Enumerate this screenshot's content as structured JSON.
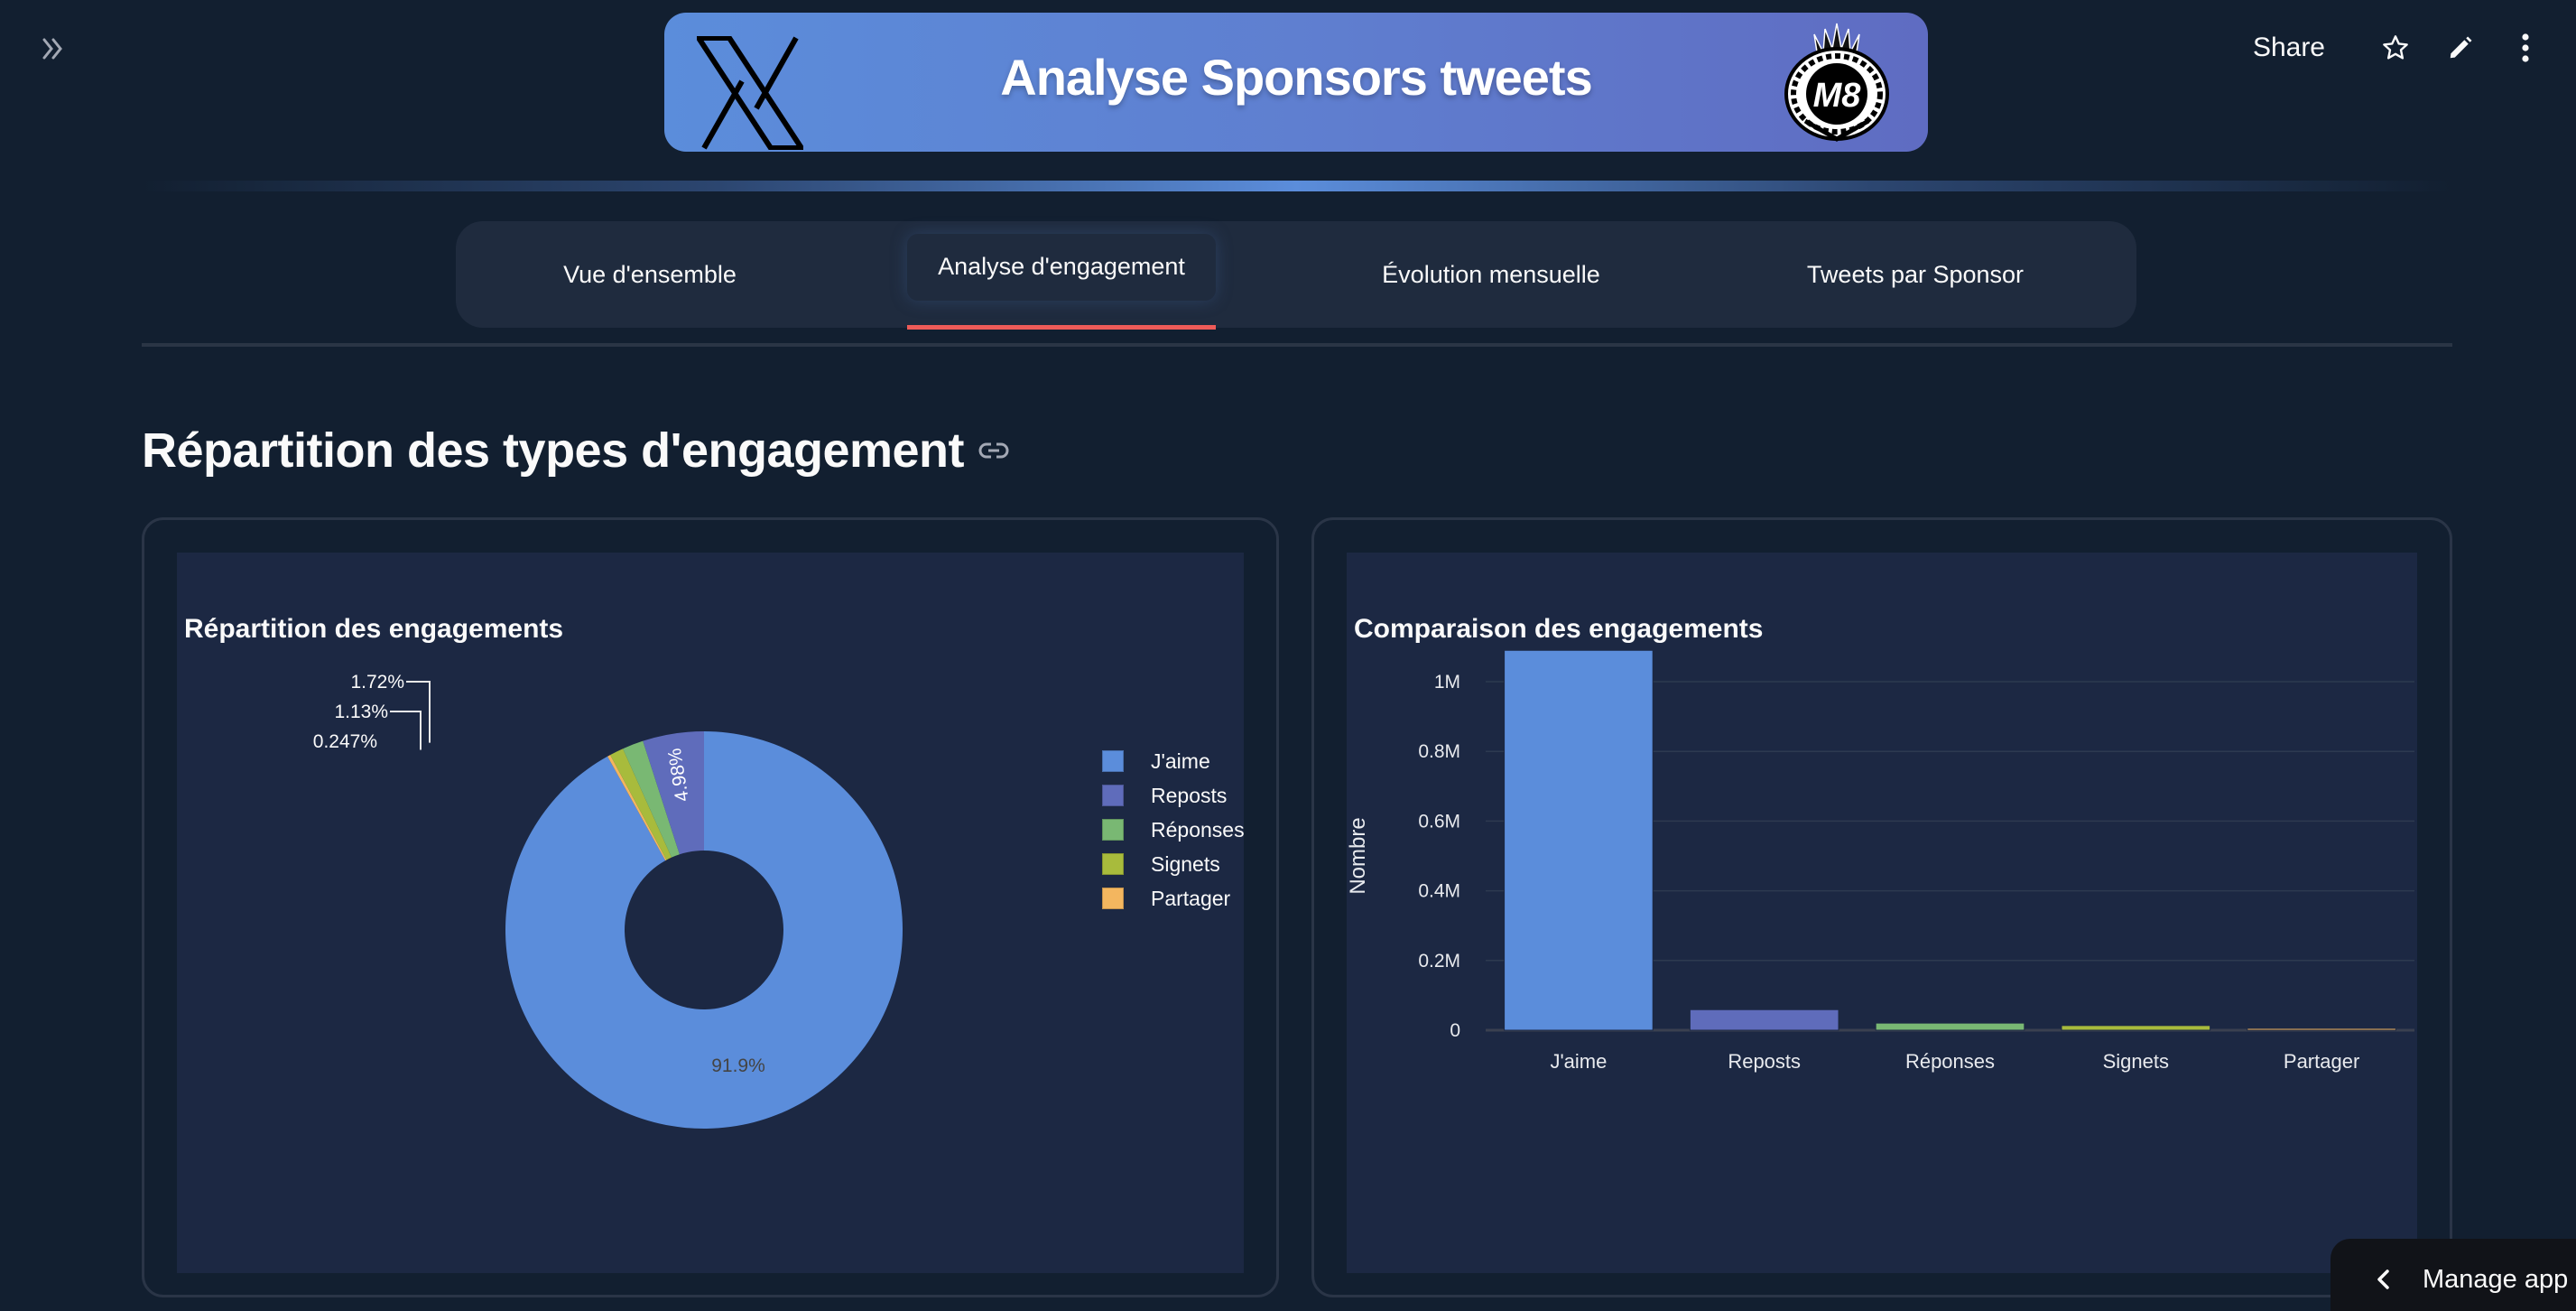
{
  "header": {
    "sidebar_toggle_icon": "double-chevron-right-icon",
    "banner_title": "Analyse Sponsors tweets",
    "left_logo": "x-logo",
    "right_logo": "m8-crest-logo",
    "banner_gradient": [
      "#5b8ddb",
      "#5f6cc2"
    ]
  },
  "toolbar": {
    "share_label": "Share",
    "icons": [
      "star-icon",
      "pencil-icon",
      "more-vertical-icon"
    ]
  },
  "tabs": [
    {
      "label": "Vue d'ensemble",
      "active": false
    },
    {
      "label": "Analyse d'engagement",
      "active": true
    },
    {
      "label": "Évolution mensuelle",
      "active": false
    },
    {
      "label": "Tweets par Sponsor",
      "active": false
    }
  ],
  "tab_accent": "#ee5b58",
  "section": {
    "title": "Répartition des types d'engagement",
    "anchor_icon": "link-icon"
  },
  "manage_app": {
    "label": "Manage app"
  },
  "colors": {
    "J'aime": "#5b8ddb",
    "Reposts": "#5f6cbb",
    "Réponses": "#79b873",
    "Signets": "#a8bb3c",
    "Partager": "#f3b65f"
  },
  "chart_data": [
    {
      "type": "pie",
      "hole": 0.4,
      "title": "Répartition des engagements",
      "categories": [
        "J'aime",
        "Reposts",
        "Réponses",
        "Signets",
        "Partager"
      ],
      "values": [
        91.9,
        4.98,
        1.72,
        1.13,
        0.247
      ],
      "labels": [
        "91.9%",
        "4.98%",
        "1.72%",
        "1.13%",
        "0.247%"
      ],
      "legend_position": "right",
      "legend": [
        "J'aime",
        "Reposts",
        "Réponses",
        "Signets",
        "Partager"
      ]
    },
    {
      "type": "bar",
      "title": "Comparaison des engagements",
      "categories": [
        "J'aime",
        "Reposts",
        "Réponses",
        "Signets",
        "Partager"
      ],
      "values": [
        1090000,
        59000,
        20400,
        13400,
        2900
      ],
      "xlabel": "",
      "ylabel": "Nombre",
      "yticks": [
        "0",
        "0.2M",
        "0.4M",
        "0.6M",
        "0.8M",
        "1M"
      ],
      "ylim": [
        0,
        1150000
      ],
      "grid": true
    }
  ]
}
